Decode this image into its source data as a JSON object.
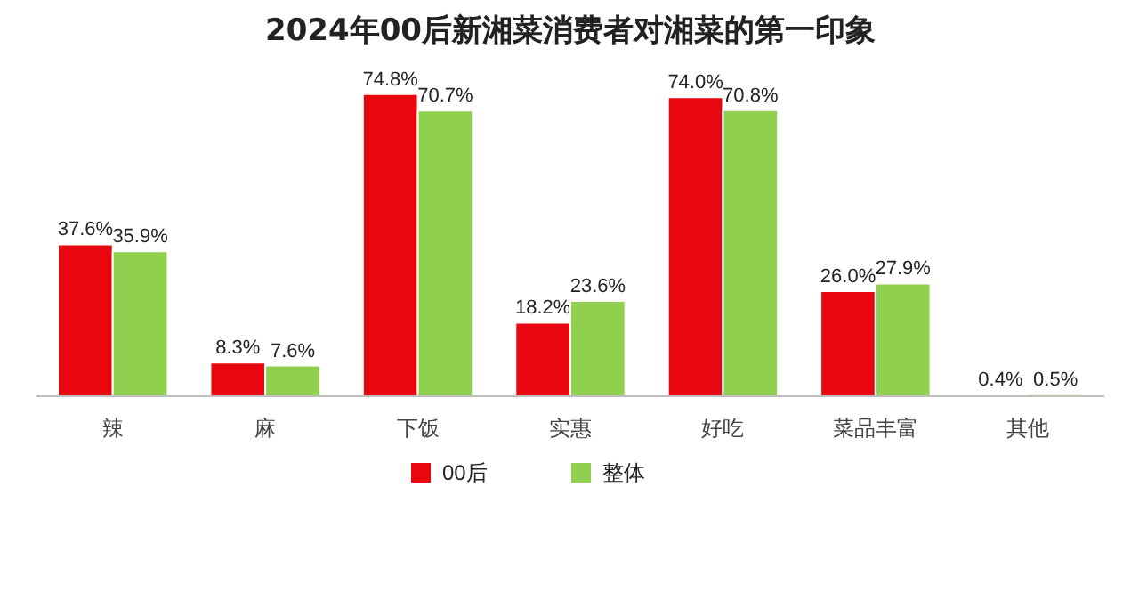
{
  "chart_data": {
    "type": "bar",
    "title": "2024年00后新湘菜消费者对湘菜的第一印象",
    "categories": [
      "辣",
      "麻",
      "下饭",
      "实惠",
      "好吃",
      "菜品丰富",
      "其他"
    ],
    "series": [
      {
        "name": "00后",
        "color": "#e8070f",
        "values": [
          37.6,
          8.3,
          74.8,
          18.2,
          74.0,
          26.0,
          0.4
        ],
        "value_labels": [
          "37.6%",
          "8.3%",
          "74.8%",
          "18.2%",
          "74.0%",
          "26.0%",
          "0.4%"
        ]
      },
      {
        "name": "整体",
        "color": "#8fd14f",
        "values": [
          35.9,
          7.6,
          70.7,
          23.6,
          70.8,
          27.9,
          0.5
        ],
        "value_labels": [
          "35.9%",
          "7.6%",
          "70.7%",
          "23.6%",
          "70.8%",
          "27.9%",
          "0.5%"
        ]
      }
    ],
    "legend": "bottom"
  }
}
